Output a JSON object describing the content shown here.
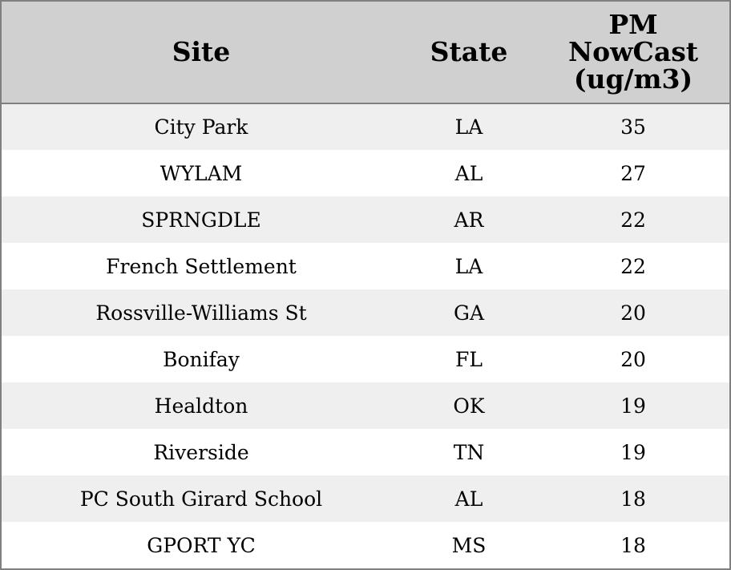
{
  "chart_data": {
    "type": "table",
    "columns": [
      "Site",
      "State",
      [
        "PM",
        "NowCast",
        "(ug/m3)"
      ]
    ],
    "rows": [
      {
        "site": "City Park",
        "state": "LA",
        "pm": 35
      },
      {
        "site": "WYLAM",
        "state": "AL",
        "pm": 27
      },
      {
        "site": "SPRNGDLE",
        "state": "AR",
        "pm": 22
      },
      {
        "site": "French Settlement",
        "state": "LA",
        "pm": 22
      },
      {
        "site": "Rossville-Williams St",
        "state": "GA",
        "pm": 20
      },
      {
        "site": "Bonifay",
        "state": "FL",
        "pm": 20
      },
      {
        "site": "Healdton",
        "state": "OK",
        "pm": 19
      },
      {
        "site": "Riverside",
        "state": "TN",
        "pm": 19
      },
      {
        "site": "PC South Girard School",
        "state": "AL",
        "pm": 18
      },
      {
        "site": "GPORT YC",
        "state": "MS",
        "pm": 18
      }
    ]
  },
  "colors": {
    "header_bg": "#d0d0d0",
    "row_alt_bg": "#efefef",
    "row_bg": "#ffffff",
    "border": "#808080"
  }
}
